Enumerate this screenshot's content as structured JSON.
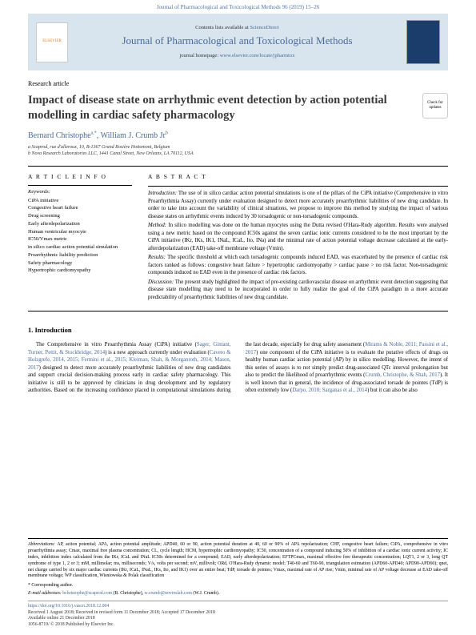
{
  "header": {
    "citation": "Journal of Pharmacological and Toxicological Methods 96 (2019) 15–26",
    "contents_text": "Contents lists available at ",
    "contents_link": "ScienceDirect",
    "journal_name": "Journal of Pharmacological and Toxicological Methods",
    "homepage_text": "journal homepage: ",
    "homepage_link": "www.elsevier.com/locate/jpharmtox",
    "elsevier": "ELSEVIER"
  },
  "article": {
    "type": "Research article",
    "title": "Impact of disease state on arrhythmic event detection by action potential modelling in cardiac safety pharmacology",
    "check_badge": "Check for updates",
    "author1": "Bernard Christophe",
    "author1_sup": "a,*",
    "author2": ", William J. Crumb Jr",
    "author2_sup": "b",
    "affil_a": "a Scaprod, rue d'alleroux, 10, B-1367 Grand Rosière Hottomont, Belgium",
    "affil_b": "b Nova Research Laboratories LLC, 1441 Canal Street, New Orleans, LA 70112, USA"
  },
  "info": {
    "head": "A R T I C L E  I N F O",
    "kw_label": "Keywords:",
    "keywords": "CiPA initiative\nCongestive heart failure\nDrug screening\nEarly afterdepolarization\nHuman ventricular myocyte\nIC50/Vmax metric\nin silico cardiac action potential simulation\nProarrhythmic liability prediction\nSafety pharmacology\nHypertrophic cardiomyopathy"
  },
  "abstract": {
    "head": "A B S T R A C T",
    "intro_label": "Introduction:",
    "intro": " The use of in silico cardiac action potential simulations is one of the pillars of the CiPA initiative (Comprehensive in vitro Proarrhythmia Assay) currently under evaluation designed to detect more accurately proarrhythmic liabilities of new drug candidate. In order to take into account the variability of clinical situations, we propose to improve this method by studying the impact of various disease states on arrhythmic events induced by 30 torsadogenic or non-torsadogenic compounds.",
    "method_label": "Method:",
    "method": " In silico modelling was done on the human myocytes using the Dutta revised O'Hara-Rudy algorithm. Results were analysed using a new metric based on the compound IC50s against the seven cardiac ionic currents considered to be the most important by the CiPA initiative (IKr, IKs, IK1, INaL, ICaL, Ito, INa) and the minimal rate of action potential voltage decrease calculated at the early-afterdepolarization (EAD) take-off membrane voltage (Vmin).",
    "results_label": "Results:",
    "results": " The specific threshold at which each torsadogenic compounds induced EAD, was exacerbated by the presence of cardiac risk factors ranked as follows: congestive heart failure > hypertrophic cardiomyopathy > cardiac pause > no risk factor. Non-torsadogenic compounds induced no EAD even in the presence of cardiac risk factors.",
    "discussion_label": "Discussion:",
    "discussion": " The present study highlighted the impact of pre-existing cardiovascular disease on arrhythmic event detection suggesting that disease state modelling may need to be incorporated in order to fully realize the goal of the CiPA paradigm in a more accurate predictability of proarrhythmic liabilities of new drug candidate."
  },
  "intro": {
    "head": "1. Introduction",
    "para": "The Comprehensive in vitro Proarrhythmia Assay (CiPA) initiative (Sager, Gintant, Turner, Pettit, & Stockbridge, 2014) is a new approach currently under evaluation (Cavero & Holzgrefe, 2014, 2015; Fermini et al., 2015; Kleiman, Shah, & Morganroth, 2014; Mason, 2017) designed to detect more accurately proarrhythmic liabilities of new drug candidates and support crucial decision-making process early in cardiac safety pharmacology. This initiative is still to be approved by clinicians in drug development and by regulatory authorities. Based on the increasing confidence placed in computational simulations during the last decade, especially for drug safety assessment (Mirams & Noble, 2011; Passini et al., 2017) one component of the CiPA initiative is to evaluate the putative effects of drugs on healthy human cardiac action potential (AP) by in silico modelling. However, the intent of this series of assays is to not simply predict drug-associated QTc interval prolongation but also to predict the likelihood of proarrhythmic events (Crumb, Christophe, & Shah, 2017). It is well known that in general, the incidence of drug-associated torsade de pointes (TdP) is often extremely low (Darpo, 2010; Sarganas et al., 2014) but it can also be also"
  },
  "footer": {
    "abbrev_label": "Abbreviations:",
    "abbrev": " AP, action potential; APA, action potential amplitude; APD40, 60 or 90, action potential duration at 40, 60 or 90% of APA repolarization; CHF, congestive heart failure; CiPA, comprehensive in vitro proarrhythmia assay; Cmax, maximal free plasma concentration; CL, cycle length; HCM, hypertrophic cardiomyopathy; IC50, concentration of a compound inducing 50% of inhibition of a cardiac ionic current activity; IC index, inhibition index calculated from the IKr, ICaL and INaL IC50s determined for a compound; EAD, early afterdepolarization; EFTPCmax, maximal effective free therapeutic concentration; LQT1, 2 or 3, long QT syndrome of type 1, 2 or 3; mM, millimolar; ms, milliseconds; V/s, volts per second; mV, millivolt; ORd, O'Hara-Rudy dynamic model; T40-60 and T60-90, triangulation estimation (APD60-APD40; APD90-APD60); qnet, net charge carried by six major cardiac currents (IKr, ICaL, INaL, IKs, Ito, and IK1) over an entire beat; TdP, torsade de pointes; Vmax, maximal rate of AP rise; Vmin, minimal rate of AP voltage decrease at EAD take-off membrane voltage; WP classification, Wisniowska & Polak classification",
    "corr": "* Corresponding author.",
    "email_label": "E-mail addresses: ",
    "email1": "bchristophe@scaprod.com",
    "email1_who": " (B. Christophe), ",
    "email2": "w.crumb@novreslab.com",
    "email2_who": " (W.J. Crumb).",
    "doi": "https://doi.org/10.1016/j.vascn.2018.12.004",
    "dates": "Received 1 August 2018; Received in revised form 11 December 2018; Accepted 17 December 2018",
    "online": "Available online 21 December 2018",
    "copyright": "1056-8719/ © 2018 Published by Elsevier Inc."
  }
}
